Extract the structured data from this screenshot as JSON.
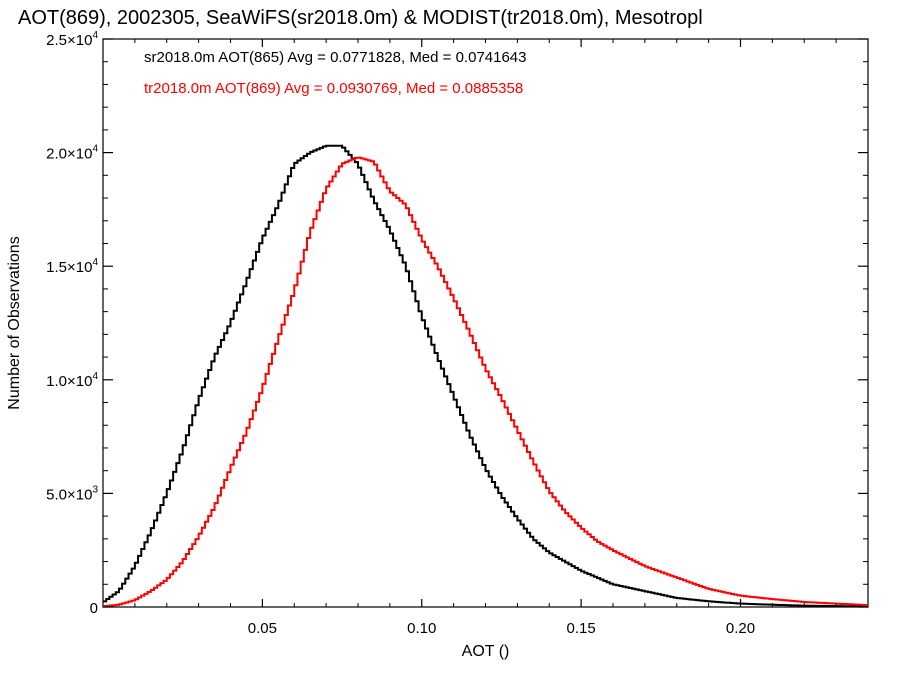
{
  "chart_data": {
    "type": "line",
    "step": true,
    "title": "AOT(869), 2002305, SeaWiFS(sr2018.0m) & MODIST(tr2018.0m), Mesotropl",
    "xlabel": "AOT ()",
    "ylabel": "Number of Observations",
    "xlim": [
      0.0,
      0.24
    ],
    "ylim": [
      0,
      25000
    ],
    "x_ticks": [
      0.05,
      0.1,
      0.15,
      0.2
    ],
    "x_tick_labels": [
      "0.05",
      "0.10",
      "0.15",
      "0.20"
    ],
    "y_ticks": [
      0,
      5000,
      10000,
      15000,
      20000,
      25000
    ],
    "y_tick_labels": [
      {
        "mant": "0",
        "exp": ""
      },
      {
        "mant": "5.0×10",
        "exp": "3"
      },
      {
        "mant": "1.0×10",
        "exp": "4"
      },
      {
        "mant": "1.5×10",
        "exp": "4"
      },
      {
        "mant": "2.0×10",
        "exp": "4"
      },
      {
        "mant": "2.5×10",
        "exp": "4"
      }
    ],
    "grid": false,
    "legend_position": "top-left",
    "series": [
      {
        "name": "sr2018.0m AOT(865) Avg = 0.0771828, Med = 0.0741643",
        "color": "#000000",
        "x": [
          0.0,
          0.005,
          0.01,
          0.015,
          0.02,
          0.025,
          0.03,
          0.035,
          0.04,
          0.045,
          0.05,
          0.055,
          0.06,
          0.065,
          0.07,
          0.075,
          0.08,
          0.085,
          0.09,
          0.095,
          0.1,
          0.105,
          0.11,
          0.115,
          0.12,
          0.125,
          0.13,
          0.135,
          0.14,
          0.145,
          0.15,
          0.155,
          0.16,
          0.17,
          0.18,
          0.19,
          0.2,
          0.21,
          0.22,
          0.23,
          0.24
        ],
        "y": [
          200,
          700,
          1800,
          3300,
          5000,
          6900,
          9100,
          11000,
          12500,
          14300,
          16200,
          17700,
          19500,
          20000,
          20300,
          20300,
          19500,
          17900,
          16600,
          15000,
          12800,
          11000,
          9300,
          7600,
          6100,
          4900,
          3900,
          3000,
          2400,
          2000,
          1600,
          1300,
          1000,
          700,
          400,
          250,
          150,
          100,
          60,
          40,
          20
        ]
      },
      {
        "name": "tr2018.0m AOT(869) Avg = 0.0930769, Med = 0.0885358",
        "color": "#ff0000",
        "x": [
          0.0,
          0.005,
          0.01,
          0.015,
          0.02,
          0.025,
          0.03,
          0.035,
          0.04,
          0.045,
          0.05,
          0.055,
          0.06,
          0.065,
          0.07,
          0.075,
          0.08,
          0.085,
          0.09,
          0.095,
          0.1,
          0.105,
          0.11,
          0.115,
          0.12,
          0.125,
          0.13,
          0.135,
          0.14,
          0.145,
          0.15,
          0.155,
          0.16,
          0.17,
          0.18,
          0.19,
          0.2,
          0.21,
          0.22,
          0.23,
          0.24
        ],
        "y": [
          30,
          100,
          300,
          700,
          1200,
          2000,
          3100,
          4400,
          6100,
          7700,
          9600,
          11800,
          13900,
          16500,
          18400,
          19500,
          19800,
          19600,
          18300,
          17700,
          16200,
          15000,
          13600,
          12100,
          10500,
          9200,
          7800,
          6400,
          5100,
          4200,
          3500,
          2900,
          2500,
          1800,
          1300,
          800,
          500,
          350,
          220,
          150,
          80
        ]
      }
    ]
  }
}
